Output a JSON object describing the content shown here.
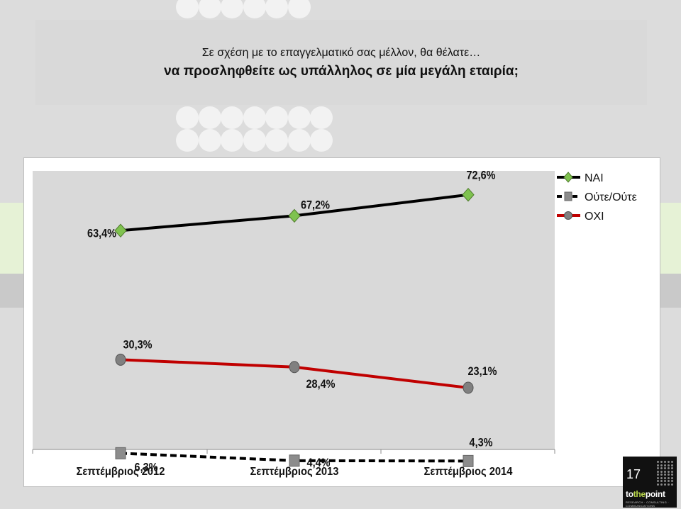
{
  "title": {
    "line1": "Σε σχέση με το επαγγελματικό σας μέλλον, θα θέλατε…",
    "line2": "να προσληφθείτε ως υπάλληλος σε μία μεγάλη εταιρία;"
  },
  "page_number": "17",
  "logo": {
    "to": "to",
    "the": "the",
    "point": "point",
    "sub": "RESEARCH · CONSULTING · COMMUNICATIONS"
  },
  "chart_data": {
    "type": "line",
    "categories": [
      "Σεπτέμβριος 2012",
      "Σεπτέμβριος 2013",
      "Σεπτέμβριος 2014"
    ],
    "series": [
      {
        "name": "ΝΑΙ",
        "values": [
          63.4,
          67.2,
          72.6
        ],
        "labels": [
          "63,4%",
          "67,2%",
          "72,6%"
        ],
        "color": "#000000",
        "marker": "diamond",
        "marker_color": "#7fc24f",
        "dash": false
      },
      {
        "name": "Ούτε/Ούτε",
        "values": [
          6.3,
          4.4,
          4.3
        ],
        "labels": [
          "6,3%",
          "4,4%",
          "4,3%"
        ],
        "color": "#000000",
        "marker": "square",
        "marker_color": "#8c8c8c",
        "dash": true
      },
      {
        "name": "ΟΧΙ",
        "values": [
          30.3,
          28.4,
          23.1
        ],
        "labels": [
          "30,3%",
          "28,4%",
          "23,1%"
        ],
        "color": "#c00000",
        "marker": "circle",
        "marker_color": "#808080",
        "dash": false
      }
    ],
    "legend_position": "top-right",
    "grid": false
  }
}
